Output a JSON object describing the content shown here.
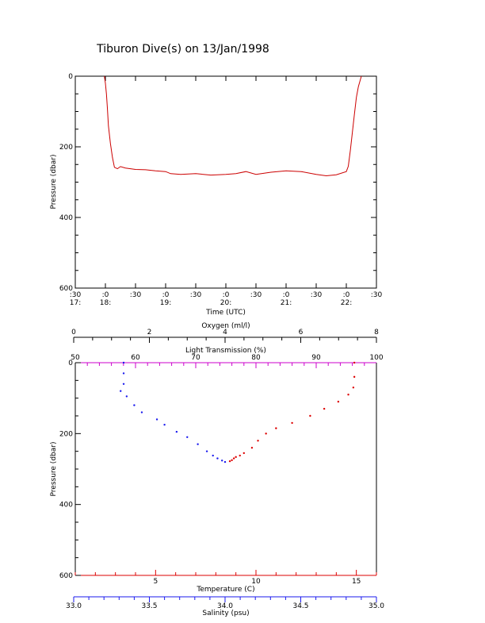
{
  "title": "Tiburon Dive(s) on 13/Jan/1998",
  "colors": {
    "axis": "#000000",
    "series": "#cc0000",
    "temperature": "#dd0000",
    "salinity": "#1a1aee",
    "light": "#cc00cc",
    "oxygen": "#000000"
  },
  "chart_data": [
    {
      "type": "line",
      "xlabel": "Time (UTC)",
      "ylabel": "Pressure (dbar)",
      "x_tick_labels": [
        {
          "t": ":30",
          "h": "17:"
        },
        {
          "t": ":0",
          "h": "18:"
        },
        {
          "t": ":30",
          "h": ""
        },
        {
          "t": ":0",
          "h": "19:"
        },
        {
          "t": ":30",
          "h": ""
        },
        {
          "t": ":0",
          "h": "20:"
        },
        {
          "t": ":30",
          "h": ""
        },
        {
          "t": ":0",
          "h": "21:"
        },
        {
          "t": ":30",
          "h": ""
        },
        {
          "t": ":0",
          "h": "22:"
        },
        {
          "t": ":30",
          "h": ""
        }
      ],
      "xlim": [
        "17:30",
        "22:30"
      ],
      "ylim": [
        600,
        0
      ],
      "y_ticks": [
        0,
        200,
        400,
        600
      ],
      "series": [
        {
          "points": [
            [
              "17:59",
              0
            ],
            [
              "18:00",
              20
            ],
            [
              "18:01",
              50
            ],
            [
              "18:02",
              90
            ],
            [
              "18:03",
              140
            ],
            [
              "18:05",
              190
            ],
            [
              "18:07",
              230
            ],
            [
              "18:09",
              258
            ],
            [
              "18:12",
              262
            ],
            [
              "18:15",
              256
            ],
            [
              "18:20",
              260
            ],
            [
              "18:30",
              264
            ],
            [
              "18:40",
              265
            ],
            [
              "18:50",
              268
            ],
            [
              "19:00",
              270
            ],
            [
              "19:05",
              276
            ],
            [
              "19:15",
              278
            ],
            [
              "19:30",
              276
            ],
            [
              "19:45",
              280
            ],
            [
              "20:00",
              278
            ],
            [
              "20:10",
              276
            ],
            [
              "20:20",
              270
            ],
            [
              "20:30",
              278
            ],
            [
              "20:45",
              272
            ],
            [
              "21:00",
              268
            ],
            [
              "21:15",
              270
            ],
            [
              "21:30",
              278
            ],
            [
              "21:40",
              282
            ],
            [
              "21:50",
              279
            ],
            [
              "22:00",
              270
            ],
            [
              "22:02",
              255
            ],
            [
              "22:04",
              210
            ],
            [
              "22:06",
              160
            ],
            [
              "22:08",
              110
            ],
            [
              "22:10",
              60
            ],
            [
              "22:12",
              30
            ],
            [
              "22:14",
              10
            ],
            [
              "22:15",
              0
            ]
          ]
        }
      ]
    },
    {
      "type": "scatter",
      "ylabel": "Pressure (dbar)",
      "ylim": [
        600,
        0
      ],
      "y_ticks": [
        0,
        200,
        400,
        600
      ],
      "axes": {
        "oxygen": {
          "label": "Oxygen (ml/l)",
          "range": [
            0,
            8
          ],
          "ticks": [
            0,
            2,
            4,
            6,
            8
          ]
        },
        "light": {
          "label": "Light Transmission (%)",
          "range": [
            50,
            100
          ],
          "ticks": [
            50,
            60,
            70,
            80,
            90,
            100
          ]
        },
        "temperature": {
          "label": "Temperature (C)",
          "range": [
            1,
            16
          ],
          "ticks": [
            5,
            10,
            15
          ]
        },
        "salinity": {
          "label": "Salinity (psu)",
          "range": [
            33.0,
            35.0
          ],
          "ticks": [
            "33.0",
            "33.5",
            "34.0",
            "34.5",
            "35.0"
          ]
        }
      },
      "series": [
        {
          "axis": "temperature",
          "points": [
            [
              14.9,
              0
            ],
            [
              14.9,
              40
            ],
            [
              14.85,
              70
            ],
            [
              14.6,
              90
            ],
            [
              14.1,
              110
            ],
            [
              13.4,
              130
            ],
            [
              12.7,
              150
            ],
            [
              11.8,
              170
            ],
            [
              11.0,
              185
            ],
            [
              10.5,
              200
            ],
            [
              10.1,
              220
            ],
            [
              9.8,
              240
            ],
            [
              9.4,
              255
            ],
            [
              9.2,
              262
            ],
            [
              9.0,
              266
            ],
            [
              8.9,
              270
            ],
            [
              8.8,
              275
            ],
            [
              8.7,
              278
            ]
          ]
        },
        {
          "axis": "salinity",
          "points": [
            [
              33.33,
              0
            ],
            [
              33.33,
              30
            ],
            [
              33.33,
              60
            ],
            [
              33.31,
              80
            ],
            [
              33.35,
              95
            ],
            [
              33.4,
              120
            ],
            [
              33.45,
              140
            ],
            [
              33.55,
              160
            ],
            [
              33.6,
              175
            ],
            [
              33.68,
              195
            ],
            [
              33.75,
              210
            ],
            [
              33.82,
              230
            ],
            [
              33.88,
              250
            ],
            [
              33.92,
              262
            ],
            [
              33.95,
              270
            ],
            [
              33.98,
              276
            ],
            [
              34.0,
              280
            ]
          ]
        }
      ]
    }
  ]
}
